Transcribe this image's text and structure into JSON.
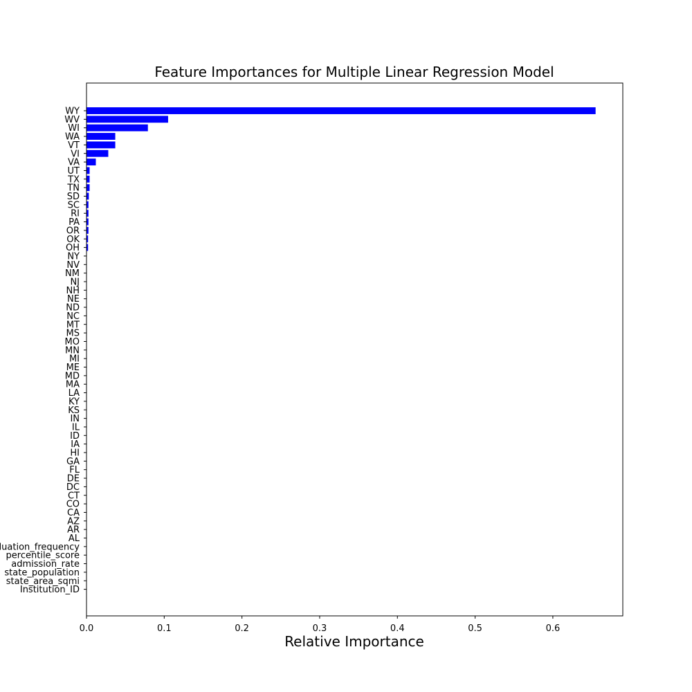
{
  "chart_data": {
    "type": "bar",
    "orientation": "horizontal",
    "title": "Feature Importances for Multiple Linear Regression Model",
    "xlabel": "Relative Importance",
    "ylabel": "",
    "xlim": [
      0,
      0.69
    ],
    "xticks": [
      0.0,
      0.1,
      0.2,
      0.3,
      0.4,
      0.5,
      0.6
    ],
    "xtick_labels": [
      "0.0",
      "0.1",
      "0.2",
      "0.3",
      "0.4",
      "0.5",
      "0.6"
    ],
    "grid": false,
    "bar_color": "#0000ff",
    "categories": [
      "WY",
      "WV",
      "WI",
      "WA",
      "VT",
      "VI",
      "VA",
      "UT",
      "TX",
      "TN",
      "SD",
      "SC",
      "RI",
      "PA",
      "OR",
      "OK",
      "OH",
      "NY",
      "NV",
      "NM",
      "NJ",
      "NH",
      "NE",
      "ND",
      "NC",
      "MT",
      "MS",
      "MO",
      "MN",
      "MI",
      "ME",
      "MD",
      "MA",
      "LA",
      "KY",
      "KS",
      "IN",
      "IL",
      "ID",
      "IA",
      "HI",
      "GA",
      "FL",
      "DE",
      "DC",
      "CT",
      "CO",
      "CA",
      "AZ",
      "AR",
      "AL",
      "graduation_frequency",
      "percentile_score",
      "admission_rate",
      "state_population",
      "state_area_sqmi",
      "Institution_ID"
    ],
    "values": [
      0.655,
      0.105,
      0.079,
      0.037,
      0.037,
      0.028,
      0.012,
      0.004,
      0.004,
      0.004,
      0.003,
      0.0025,
      0.0025,
      0.0025,
      0.0025,
      0.002,
      0.002,
      0.0,
      0.0,
      0.0,
      0.0,
      0.0,
      0.0,
      0.0,
      0.0,
      0.0,
      0.0,
      0.0,
      0.0,
      0.0,
      0.0,
      0.0,
      0.0,
      0.0,
      0.0,
      0.0,
      0.0,
      0.0,
      0.0,
      0.0,
      0.0,
      0.0,
      0.0,
      0.0,
      0.0,
      0.0,
      0.0,
      0.0,
      0.0,
      0.0,
      0.0,
      0.0,
      0.0,
      0.0,
      0.0,
      0.0,
      0.0
    ]
  }
}
